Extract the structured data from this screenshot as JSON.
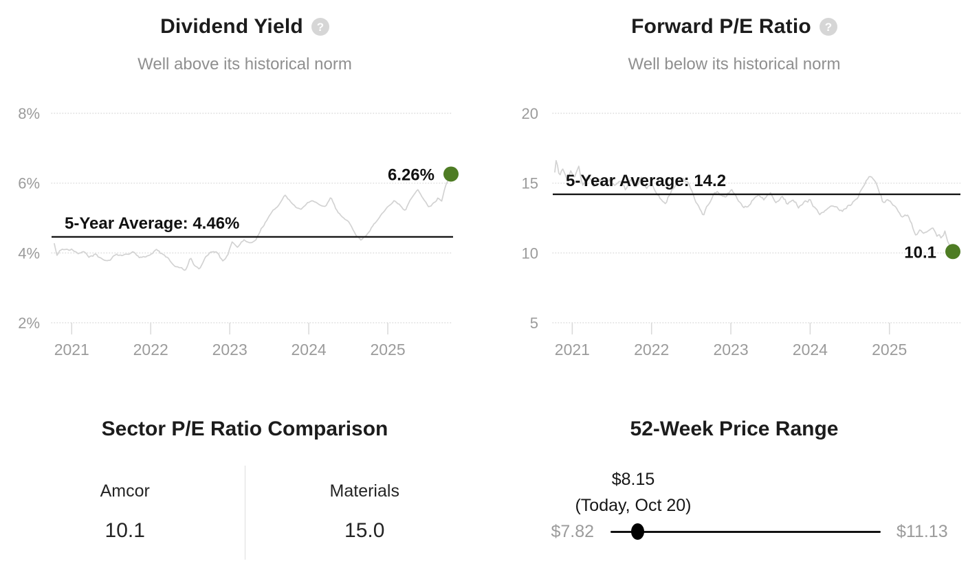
{
  "theme": {
    "accent_green": "#4e7c24",
    "series_gray": "#d2d2d2",
    "grid_gray": "#dcdcdc",
    "text_dark": "#1c1c1c",
    "subtitle_gray": "#8f8f8f",
    "axis_gray": "#9b9b9b",
    "line_black": "#111111"
  },
  "chart_data": [
    {
      "type": "line",
      "title": "Dividend Yield",
      "subtitle": "Well above its historical norm",
      "help_icon": "question-mark",
      "y_ticks": [
        {
          "v": 8,
          "label": "8%"
        },
        {
          "v": 6,
          "label": "6%"
        },
        {
          "v": 4,
          "label": "4%"
        },
        {
          "v": 2,
          "label": "2%"
        }
      ],
      "x_ticks": [
        {
          "v": 2021,
          "label": "2021"
        },
        {
          "v": 2022,
          "label": "2022"
        },
        {
          "v": 2023,
          "label": "2023"
        },
        {
          "v": 2024,
          "label": "2024"
        },
        {
          "v": 2025,
          "label": "2025"
        }
      ],
      "x_range": [
        2020.78,
        2025.8
      ],
      "y_range": [
        2,
        8
      ],
      "average": {
        "value": 4.46,
        "label": "5-Year Average: 4.46%"
      },
      "current": {
        "value": 6.26,
        "label": "6.26%"
      },
      "noise_amp": 0.05,
      "seed": 7,
      "keypoints": [
        [
          2020.78,
          4.3
        ],
        [
          2020.81,
          3.92
        ],
        [
          2020.86,
          4.1
        ],
        [
          2020.95,
          4.12
        ],
        [
          2021.0,
          4.15
        ],
        [
          2021.08,
          4.0
        ],
        [
          2021.15,
          4.08
        ],
        [
          2021.22,
          3.92
        ],
        [
          2021.3,
          3.98
        ],
        [
          2021.4,
          3.78
        ],
        [
          2021.48,
          3.72
        ],
        [
          2021.55,
          3.95
        ],
        [
          2021.63,
          3.88
        ],
        [
          2021.7,
          3.95
        ],
        [
          2021.78,
          4.02
        ],
        [
          2021.85,
          3.85
        ],
        [
          2021.92,
          3.92
        ],
        [
          2022.0,
          3.98
        ],
        [
          2022.07,
          4.1
        ],
        [
          2022.15,
          3.95
        ],
        [
          2022.22,
          3.85
        ],
        [
          2022.3,
          3.62
        ],
        [
          2022.38,
          3.55
        ],
        [
          2022.44,
          3.48
        ],
        [
          2022.5,
          3.85
        ],
        [
          2022.55,
          3.65
        ],
        [
          2022.62,
          3.52
        ],
        [
          2022.7,
          3.9
        ],
        [
          2022.78,
          4.02
        ],
        [
          2022.85,
          3.95
        ],
        [
          2022.92,
          3.72
        ],
        [
          2022.98,
          3.95
        ],
        [
          2023.03,
          4.32
        ],
        [
          2023.1,
          4.18
        ],
        [
          2023.18,
          4.38
        ],
        [
          2023.26,
          4.28
        ],
        [
          2023.33,
          4.35
        ],
        [
          2023.4,
          4.7
        ],
        [
          2023.48,
          5.0
        ],
        [
          2023.55,
          5.2
        ],
        [
          2023.62,
          5.35
        ],
        [
          2023.7,
          5.68
        ],
        [
          2023.76,
          5.5
        ],
        [
          2023.83,
          5.3
        ],
        [
          2023.9,
          5.22
        ],
        [
          2023.97,
          5.4
        ],
        [
          2024.05,
          5.52
        ],
        [
          2024.12,
          5.4
        ],
        [
          2024.2,
          5.28
        ],
        [
          2024.28,
          5.55
        ],
        [
          2024.35,
          5.2
        ],
        [
          2024.43,
          5.05
        ],
        [
          2024.5,
          4.92
        ],
        [
          2024.58,
          4.6
        ],
        [
          2024.66,
          4.38
        ],
        [
          2024.73,
          4.55
        ],
        [
          2024.8,
          4.78
        ],
        [
          2024.88,
          4.95
        ],
        [
          2024.95,
          5.2
        ],
        [
          2025.02,
          5.38
        ],
        [
          2025.08,
          5.52
        ],
        [
          2025.15,
          5.35
        ],
        [
          2025.22,
          5.18
        ],
        [
          2025.3,
          5.55
        ],
        [
          2025.38,
          5.78
        ],
        [
          2025.45,
          5.5
        ],
        [
          2025.52,
          5.3
        ],
        [
          2025.58,
          5.45
        ],
        [
          2025.64,
          5.6
        ],
        [
          2025.68,
          5.5
        ],
        [
          2025.72,
          5.88
        ],
        [
          2025.76,
          6.08
        ],
        [
          2025.8,
          6.26
        ]
      ]
    },
    {
      "type": "line",
      "title": "Forward P/E Ratio",
      "subtitle": "Well below its historical norm",
      "help_icon": "question-mark",
      "y_ticks": [
        {
          "v": 20,
          "label": "20"
        },
        {
          "v": 15,
          "label": "15"
        },
        {
          "v": 10,
          "label": "10"
        },
        {
          "v": 5,
          "label": "5"
        }
      ],
      "x_ticks": [
        {
          "v": 2021,
          "label": "2021"
        },
        {
          "v": 2022,
          "label": "2022"
        },
        {
          "v": 2023,
          "label": "2023"
        },
        {
          "v": 2024,
          "label": "2024"
        },
        {
          "v": 2025,
          "label": "2025"
        }
      ],
      "x_range": [
        2020.78,
        2025.8
      ],
      "y_range": [
        5,
        20
      ],
      "average": {
        "value": 14.2,
        "label": "5-Year Average: 14.2"
      },
      "current": {
        "value": 10.1,
        "label": "10.1"
      },
      "noise_amp": 0.2,
      "seed": 13,
      "keypoints": [
        [
          2020.78,
          15.8
        ],
        [
          2020.8,
          16.9
        ],
        [
          2020.84,
          15.6
        ],
        [
          2020.88,
          16.2
        ],
        [
          2020.93,
          15.4
        ],
        [
          2020.98,
          16.0
        ],
        [
          2021.03,
          15.6
        ],
        [
          2021.08,
          16.5
        ],
        [
          2021.13,
          15.2
        ],
        [
          2021.2,
          15.8
        ],
        [
          2021.27,
          15.0
        ],
        [
          2021.33,
          15.6
        ],
        [
          2021.4,
          14.9
        ],
        [
          2021.47,
          15.4
        ],
        [
          2021.53,
          14.8
        ],
        [
          2021.6,
          15.2
        ],
        [
          2021.67,
          14.6
        ],
        [
          2021.74,
          15.1
        ],
        [
          2021.8,
          14.7
        ],
        [
          2021.87,
          15.3
        ],
        [
          2021.93,
          14.6
        ],
        [
          2022.0,
          15.0
        ],
        [
          2022.06,
          14.2
        ],
        [
          2022.12,
          13.7
        ],
        [
          2022.18,
          13.5
        ],
        [
          2022.25,
          14.3
        ],
        [
          2022.32,
          14.9
        ],
        [
          2022.4,
          15.3
        ],
        [
          2022.47,
          14.8
        ],
        [
          2022.54,
          13.9
        ],
        [
          2022.6,
          13.4
        ],
        [
          2022.66,
          12.8
        ],
        [
          2022.73,
          13.7
        ],
        [
          2022.8,
          14.4
        ],
        [
          2022.87,
          14.1
        ],
        [
          2022.93,
          13.8
        ],
        [
          2023.0,
          14.5
        ],
        [
          2023.07,
          14.0
        ],
        [
          2023.14,
          13.4
        ],
        [
          2023.21,
          13.2
        ],
        [
          2023.28,
          13.9
        ],
        [
          2023.35,
          14.3
        ],
        [
          2023.42,
          13.8
        ],
        [
          2023.5,
          14.2
        ],
        [
          2023.57,
          13.6
        ],
        [
          2023.64,
          14.0
        ],
        [
          2023.71,
          13.5
        ],
        [
          2023.78,
          13.8
        ],
        [
          2023.85,
          13.3
        ],
        [
          2023.92,
          13.6
        ],
        [
          2024.0,
          13.8
        ],
        [
          2024.06,
          13.1
        ],
        [
          2024.12,
          12.7
        ],
        [
          2024.19,
          13.0
        ],
        [
          2024.26,
          13.4
        ],
        [
          2024.33,
          13.6
        ],
        [
          2024.4,
          13.1
        ],
        [
          2024.47,
          13.4
        ],
        [
          2024.54,
          13.7
        ],
        [
          2024.6,
          13.9
        ],
        [
          2024.66,
          14.6
        ],
        [
          2024.72,
          15.2
        ],
        [
          2024.77,
          15.5
        ],
        [
          2024.82,
          15.1
        ],
        [
          2024.87,
          14.4
        ],
        [
          2024.92,
          13.6
        ],
        [
          2024.98,
          13.9
        ],
        [
          2025.04,
          13.5
        ],
        [
          2025.1,
          13.1
        ],
        [
          2025.16,
          12.4
        ],
        [
          2025.22,
          12.6
        ],
        [
          2025.28,
          11.9
        ],
        [
          2025.33,
          11.2
        ],
        [
          2025.38,
          11.6
        ],
        [
          2025.44,
          11.4
        ],
        [
          2025.5,
          11.6
        ],
        [
          2025.55,
          11.9
        ],
        [
          2025.6,
          11.4
        ],
        [
          2025.65,
          11.2
        ],
        [
          2025.7,
          11.6
        ],
        [
          2025.74,
          10.8
        ],
        [
          2025.77,
          10.4
        ],
        [
          2025.8,
          10.1
        ]
      ]
    }
  ],
  "sector_comparison": {
    "title": "Sector P/E Ratio Comparison",
    "items": [
      {
        "label": "Amcor",
        "value": "10.1"
      },
      {
        "label": "Materials",
        "value": "15.0"
      }
    ]
  },
  "price_range": {
    "title": "52-Week Price Range",
    "current_label": "$8.15",
    "current_sub": "(Today, Oct 20)",
    "min_label": "$7.82",
    "max_label": "$11.13",
    "min_value": 7.82,
    "max_value": 11.13,
    "current_value": 8.15
  }
}
